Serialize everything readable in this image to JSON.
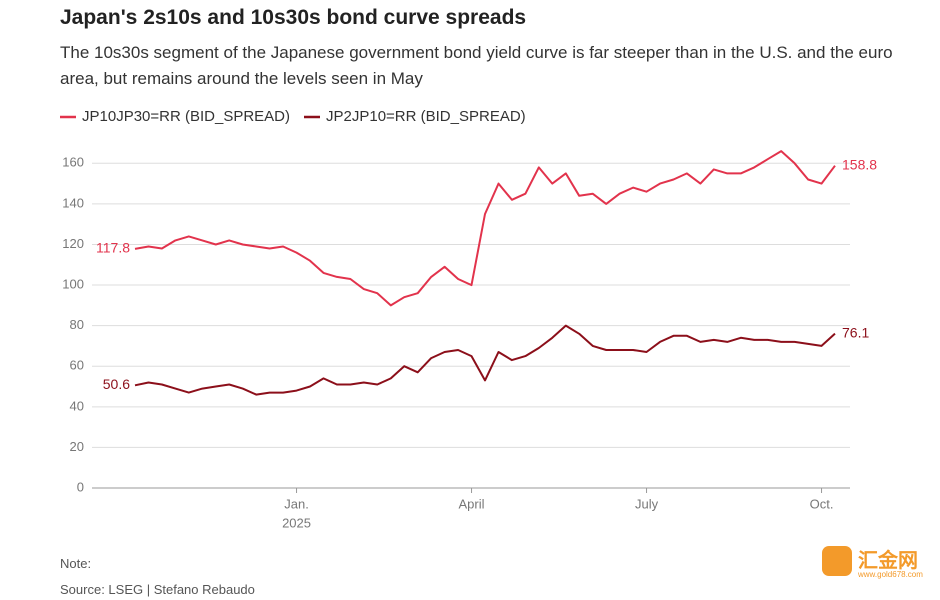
{
  "chart_data": {
    "type": "line",
    "title": "Japan's 2s10s and 10s30s bond curve spreads",
    "subtitle": "The 10s30s segment of the Japanese government bond yield curve is far steeper than in the U.S. and the euro area, but remains around the levels seen in May",
    "note": "Note:",
    "source": "Source: LSEG | Stefano Rebaudo",
    "watermark": "汇金网",
    "watermark_url": "www.gold678.com",
    "legend": "top-left",
    "grid": true,
    "categories": [
      null,
      null,
      null,
      null,
      null,
      null,
      null,
      null,
      null,
      null,
      null,
      null,
      "Jan.",
      null,
      null,
      null,
      null,
      null,
      null,
      null,
      null,
      null,
      null,
      null,
      null,
      "April",
      null,
      null,
      null,
      null,
      null,
      null,
      null,
      null,
      null,
      null,
      null,
      null,
      "July",
      null,
      null,
      null,
      null,
      null,
      null,
      null,
      null,
      null,
      null,
      null,
      null,
      "Oct.",
      null
    ],
    "year_label": "2025",
    "ylim": [
      0,
      170
    ],
    "yticks": [
      0,
      20,
      40,
      60,
      80,
      100,
      120,
      140,
      160
    ],
    "series": [
      {
        "name": "JP10JP30=RR (BID_SPREAD)",
        "color": "#e2334c",
        "values": [
          117.8,
          119,
          118,
          122,
          124,
          122,
          120,
          122,
          120,
          119,
          118,
          119,
          116,
          112,
          106,
          104,
          103,
          98,
          96,
          90,
          94,
          96,
          104,
          109,
          103,
          100,
          135,
          150,
          142,
          145,
          158,
          150,
          155,
          144,
          145,
          140,
          145,
          148,
          146,
          150,
          152,
          155,
          150,
          157,
          155,
          155,
          158,
          162,
          166,
          160,
          152,
          150,
          158.8
        ]
      },
      {
        "name": "JP2JP10=RR (BID_SPREAD)",
        "color": "#8c0f1a",
        "values": [
          50.6,
          52,
          51,
          49,
          47,
          49,
          50,
          51,
          49,
          46,
          47,
          47,
          48,
          50,
          54,
          51,
          51,
          52,
          51,
          54,
          60,
          57,
          64,
          67,
          68,
          65,
          53,
          67,
          63,
          65,
          69,
          74,
          80,
          76,
          70,
          68,
          68,
          68,
          67,
          72,
          75,
          75,
          72,
          73,
          72,
          74,
          73,
          73,
          72,
          72,
          71,
          70,
          76.1
        ]
      }
    ]
  }
}
